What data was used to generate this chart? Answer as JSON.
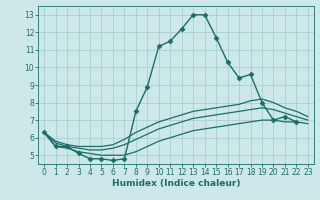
{
  "xlabel": "Humidex (Indice chaleur)",
  "bg_color": "#cce8e8",
  "grid_color": "#aacece",
  "line_color": "#1a6e6a",
  "xlim": [
    -0.5,
    23.5
  ],
  "ylim": [
    4.5,
    13.5
  ],
  "yticks": [
    5,
    6,
    7,
    8,
    9,
    10,
    11,
    12,
    13
  ],
  "xticks": [
    0,
    1,
    2,
    3,
    4,
    5,
    6,
    7,
    8,
    9,
    10,
    11,
    12,
    13,
    14,
    15,
    16,
    17,
    18,
    19,
    20,
    21,
    22,
    23
  ],
  "series": [
    {
      "x": [
        0,
        1,
        2,
        3,
        4,
        5,
        6,
        7,
        8,
        9,
        10,
        11,
        12,
        13,
        14,
        15,
        16,
        17,
        18,
        19,
        20,
        21,
        22
      ],
      "y": [
        6.3,
        5.5,
        5.5,
        5.1,
        4.8,
        4.8,
        4.7,
        4.8,
        7.5,
        8.9,
        11.2,
        11.5,
        12.2,
        13.0,
        13.0,
        11.7,
        10.3,
        9.4,
        9.6,
        8.0,
        7.0,
        7.2,
        6.9
      ],
      "marker": true,
      "lw": 1.0
    },
    {
      "x": [
        0,
        1,
        2,
        3,
        4,
        5,
        6,
        7,
        8,
        9,
        10,
        11,
        12,
        13,
        14,
        15,
        16,
        17,
        18,
        19,
        20,
        21,
        22,
        23
      ],
      "y": [
        6.3,
        5.8,
        5.6,
        5.5,
        5.5,
        5.5,
        5.6,
        5.9,
        6.3,
        6.6,
        6.9,
        7.1,
        7.3,
        7.5,
        7.6,
        7.7,
        7.8,
        7.9,
        8.1,
        8.2,
        8.0,
        7.7,
        7.5,
        7.2
      ],
      "marker": false,
      "lw": 0.9
    },
    {
      "x": [
        0,
        1,
        2,
        3,
        4,
        5,
        6,
        7,
        8,
        9,
        10,
        11,
        12,
        13,
        14,
        15,
        16,
        17,
        18,
        19,
        20,
        21,
        22,
        23
      ],
      "y": [
        6.3,
        5.7,
        5.5,
        5.4,
        5.3,
        5.3,
        5.4,
        5.6,
        5.9,
        6.2,
        6.5,
        6.7,
        6.9,
        7.1,
        7.2,
        7.3,
        7.4,
        7.5,
        7.6,
        7.7,
        7.6,
        7.4,
        7.2,
        7.0
      ],
      "marker": false,
      "lw": 0.9
    },
    {
      "x": [
        0,
        1,
        2,
        3,
        4,
        5,
        6,
        7,
        8,
        9,
        10,
        11,
        12,
        13,
        14,
        15,
        16,
        17,
        18,
        19,
        20,
        21,
        22,
        23
      ],
      "y": [
        6.3,
        5.5,
        5.4,
        5.2,
        5.1,
        5.0,
        5.0,
        5.0,
        5.2,
        5.5,
        5.8,
        6.0,
        6.2,
        6.4,
        6.5,
        6.6,
        6.7,
        6.8,
        6.9,
        7.0,
        7.0,
        6.9,
        6.9,
        6.8
      ],
      "marker": false,
      "lw": 0.9
    }
  ]
}
